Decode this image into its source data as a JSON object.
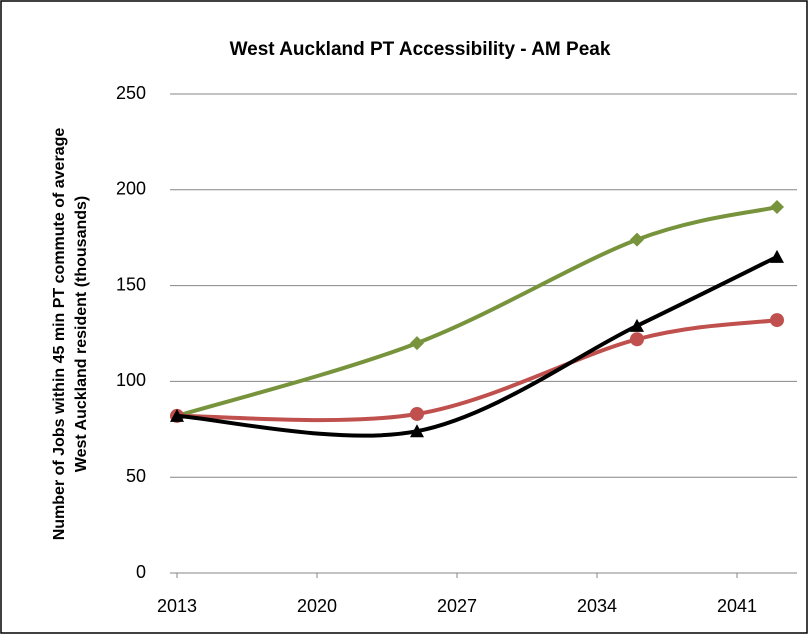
{
  "chart_data": {
    "type": "line",
    "title": "West Auckland PT Accessibility - AM Peak",
    "ylabel": [
      "Number of Jobs within 45 min PT commute of average",
      "West Auckland resident (thousands)"
    ],
    "x": [
      2013,
      2025,
      2036,
      2043
    ],
    "series": [
      {
        "color": "#77933c",
        "marker": "diamond",
        "values": [
          82,
          120,
          174,
          191
        ]
      },
      {
        "color": "#c0504d",
        "marker": "circle",
        "values": [
          82,
          83,
          122,
          132
        ]
      },
      {
        "color": "#000000",
        "marker": "triangle",
        "values": [
          82,
          74,
          129,
          165
        ]
      }
    ],
    "xlim": [
      2013,
      2044
    ],
    "xticks": [
      2013,
      2020,
      2027,
      2034,
      2041
    ],
    "ylim": [
      0,
      250
    ],
    "yticks": [
      0,
      50,
      100,
      150,
      200,
      250
    ],
    "grid": true,
    "smooth": true
  }
}
